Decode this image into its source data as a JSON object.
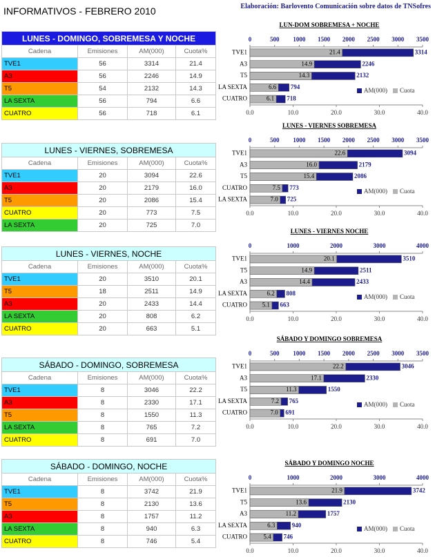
{
  "header": {
    "title": "INFORMATIVOS - FEBRERO 2010",
    "credit": "Elaboración: Barlovento Comunicación sobre datos de TNSofres"
  },
  "tables": [
    {
      "title": "LUNES - DOMINGO, SOBREMESA Y NOCHE",
      "title_background": "#1a1ae0",
      "title_color": "#ffffff",
      "columns": [
        "Cadena",
        "Emisiones",
        "AM(000)",
        "Cuota%"
      ],
      "rows": [
        [
          "TVE1",
          "56",
          "3314",
          "21.4"
        ],
        [
          "A3",
          "56",
          "2246",
          "14.9"
        ],
        [
          "T5",
          "54",
          "2132",
          "14.3"
        ],
        [
          "LA SEXTA",
          "56",
          "794",
          "6.6"
        ],
        [
          "CUATRO",
          "56",
          "718",
          "6.1"
        ]
      ],
      "row_colors": [
        "#33ccff",
        "#ff0000",
        "#ff9900",
        "#33cc33",
        "#ffff00"
      ]
    },
    {
      "title": "LUNES - VIERNES, SOBREMESA",
      "title_background": "#ccffff",
      "title_color": "#000000",
      "columns": [
        "Cadena",
        "Emisiones",
        "AM(000)",
        "Cuota%"
      ],
      "rows": [
        [
          "TVE1",
          "20",
          "3094",
          "22.6"
        ],
        [
          "A3",
          "20",
          "2179",
          "16.0"
        ],
        [
          "T5",
          "20",
          "2086",
          "15.4"
        ],
        [
          "CUATRO",
          "20",
          "773",
          "7.5"
        ],
        [
          "LA SEXTA",
          "20",
          "725",
          "7.0"
        ]
      ],
      "row_colors": [
        "#33ccff",
        "#ff0000",
        "#ff9900",
        "#ffff00",
        "#33cc33"
      ]
    },
    {
      "title": "LUNES - VIERNES, NOCHE",
      "title_background": "#ccffff",
      "title_color": "#000000",
      "columns": [
        "Cadena",
        "Emisiones",
        "AM(000)",
        "Cuota%"
      ],
      "rows": [
        [
          "TVE1",
          "20",
          "3510",
          "20.1"
        ],
        [
          "T5",
          "18",
          "2511",
          "14.9"
        ],
        [
          "A3",
          "20",
          "2433",
          "14.4"
        ],
        [
          "LA SEXTA",
          "20",
          "808",
          "6.2"
        ],
        [
          "CUATRO",
          "20",
          "663",
          "5.1"
        ]
      ],
      "row_colors": [
        "#33ccff",
        "#ff9900",
        "#ff0000",
        "#33cc33",
        "#ffff00"
      ]
    },
    {
      "title": "SÁBADO - DOMINGO, SOBREMESA",
      "title_background": "#ccffff",
      "title_color": "#000000",
      "columns": [
        "Cadena",
        "Emisiones",
        "AM(000)",
        "Cuota%"
      ],
      "rows": [
        [
          "TVE1",
          "8",
          "3046",
          "22.2"
        ],
        [
          "A3",
          "8",
          "2330",
          "17.1"
        ],
        [
          "T5",
          "8",
          "1550",
          "11.3"
        ],
        [
          "LA SEXTA",
          "8",
          "765",
          "7.2"
        ],
        [
          "CUATRO",
          "8",
          "691",
          "7.0"
        ]
      ],
      "row_colors": [
        "#33ccff",
        "#ff0000",
        "#ff9900",
        "#33cc33",
        "#ffff00"
      ]
    },
    {
      "title": "SÁBADO - DOMINGO, NOCHE",
      "title_background": "#ccffff",
      "title_color": "#000000",
      "columns": [
        "Cadena",
        "Emisiones",
        "AM(000)",
        "Cuota%"
      ],
      "rows": [
        [
          "TVE1",
          "8",
          "3742",
          "21.9"
        ],
        [
          "T5",
          "8",
          "2130",
          "13.6"
        ],
        [
          "A3",
          "8",
          "1757",
          "11.2"
        ],
        [
          "LA SEXTA",
          "8",
          "940",
          "6.3"
        ],
        [
          "CUATRO",
          "8",
          "746",
          "5.4"
        ]
      ],
      "row_colors": [
        "#33ccff",
        "#ff9900",
        "#ff0000",
        "#33cc33",
        "#ffff00"
      ]
    }
  ],
  "chart_data": [
    {
      "type": "bar",
      "orientation": "horizontal",
      "title": "LUN-DOM SOBREMESA + NOCHE",
      "legend": "lower right",
      "categories": [
        "TVE1",
        "A3",
        "T5",
        "LA SEXTA",
        "CUATRO"
      ],
      "xlim": [
        0,
        3500
      ],
      "xticks": [
        0,
        500,
        1000,
        1500,
        2000,
        2500,
        3000,
        3500
      ],
      "x2lim": [
        0,
        40
      ],
      "x2ticks": [
        {
          "value": 0,
          "label": "0.0"
        },
        {
          "value": 10,
          "label": "10.0"
        },
        {
          "value": 20,
          "label": "20.0"
        },
        {
          "value": 30,
          "label": "30.0"
        },
        {
          "value": 40,
          "label": "40.0"
        }
      ],
      "series": [
        {
          "name": "AM(000)",
          "color": "#1c1c8c",
          "values": [
            3314,
            2246,
            2132,
            794,
            718
          ]
        },
        {
          "name": "Cuota",
          "color": "#b4b4b4",
          "axis": "x2",
          "values": [
            21.4,
            14.9,
            14.3,
            6.6,
            6.1
          ],
          "value_labels": [
            "21.4",
            "14.9",
            "14.3",
            "6.6",
            "6.1"
          ]
        }
      ]
    },
    {
      "type": "bar",
      "orientation": "horizontal",
      "title": "LUNES - VIERNES SOBREMESA",
      "legend": "lower right",
      "categories": [
        "TVE1",
        "A3",
        "T5",
        "CUATRO",
        "LA SEXTA"
      ],
      "xlim": [
        0,
        3500
      ],
      "xticks": [
        0,
        500,
        1000,
        1500,
        2000,
        2500,
        3000,
        3500
      ],
      "x2lim": [
        0,
        40
      ],
      "x2ticks": [
        {
          "value": 0,
          "label": "0.0"
        },
        {
          "value": 10,
          "label": "10.0"
        },
        {
          "value": 20,
          "label": "20.0"
        },
        {
          "value": 30,
          "label": "30.0"
        },
        {
          "value": 40,
          "label": "40.0"
        }
      ],
      "series": [
        {
          "name": "AM(000)",
          "color": "#1c1c8c",
          "values": [
            3094,
            2179,
            2086,
            773,
            725
          ]
        },
        {
          "name": "Cuota",
          "color": "#b4b4b4",
          "axis": "x2",
          "values": [
            22.6,
            16.0,
            15.4,
            7.5,
            7.0
          ],
          "value_labels": [
            "22.6",
            "16.0",
            "15.4",
            "7.5",
            "7.0"
          ]
        }
      ]
    },
    {
      "type": "bar",
      "orientation": "horizontal",
      "title": "LUNES - VIERNES  NOCHE",
      "legend": "lower right",
      "categories": [
        "TVE1",
        "T5",
        "A3",
        "LA SEXTA",
        "CUATRO"
      ],
      "xlim": [
        0,
        4000
      ],
      "xticks": [
        0,
        1000,
        2000,
        3000,
        4000
      ],
      "x2lim": [
        0,
        40
      ],
      "x2ticks": [
        {
          "value": 0,
          "label": "0.0"
        },
        {
          "value": 10,
          "label": "10.0"
        },
        {
          "value": 20,
          "label": "20.0"
        },
        {
          "value": 30,
          "label": "30.0"
        },
        {
          "value": 40,
          "label": "40.0"
        }
      ],
      "series": [
        {
          "name": "AM(000)",
          "color": "#1c1c8c",
          "values": [
            3510,
            2511,
            2433,
            808,
            663
          ]
        },
        {
          "name": "Cuota",
          "color": "#b4b4b4",
          "axis": "x2",
          "values": [
            20.1,
            14.9,
            14.4,
            6.2,
            5.1
          ],
          "value_labels": [
            "20.1",
            "14.9",
            "14.4",
            "6.2",
            "5.1"
          ]
        }
      ]
    },
    {
      "type": "bar",
      "orientation": "horizontal",
      "title": "SÁBADO Y DOMINGO SOBREMESA",
      "legend": "lower right",
      "categories": [
        "TVE1",
        "A3",
        "T5",
        "LA SEXTA",
        "CUATRO"
      ],
      "xlim": [
        0,
        3500
      ],
      "xticks": [
        0,
        500,
        1000,
        1500,
        2000,
        2500,
        3000,
        3500
      ],
      "x2lim": [
        0,
        40
      ],
      "x2ticks": [
        {
          "value": 0,
          "label": "0.0"
        },
        {
          "value": 10,
          "label": "10.0"
        },
        {
          "value": 20,
          "label": "20.0"
        },
        {
          "value": 30,
          "label": "30.0"
        },
        {
          "value": 40,
          "label": "40.0"
        }
      ],
      "series": [
        {
          "name": "AM(000)",
          "color": "#1c1c8c",
          "values": [
            3046,
            2330,
            1550,
            765,
            691
          ]
        },
        {
          "name": "Cuota",
          "color": "#b4b4b4",
          "axis": "x2",
          "values": [
            22.2,
            17.1,
            11.3,
            7.2,
            7.0
          ],
          "value_labels": [
            "22.2",
            "17.1",
            "11.3",
            "7.2",
            "7.0"
          ]
        }
      ]
    },
    {
      "type": "bar",
      "orientation": "horizontal",
      "title": "SÁBADO Y DOMINGO  NOCHE",
      "legend": "lower right",
      "categories": [
        "TVE1",
        "T5",
        "A3",
        "LA SEXTA",
        "CUATRO"
      ],
      "xlim": [
        0,
        4000
      ],
      "xticks": [
        0,
        1000,
        2000,
        3000,
        4000
      ],
      "x2lim": [
        0,
        40
      ],
      "x2ticks": [
        {
          "value": 0,
          "label": "0.0"
        },
        {
          "value": 10,
          "label": "10.0"
        },
        {
          "value": 20,
          "label": "20.0"
        },
        {
          "value": 30,
          "label": "30.0"
        },
        {
          "value": 40,
          "label": "40.0"
        }
      ],
      "series": [
        {
          "name": "AM(000)",
          "color": "#1c1c8c",
          "values": [
            3742,
            2130,
            1757,
            940,
            746
          ]
        },
        {
          "name": "Cuota",
          "color": "#b4b4b4",
          "axis": "x2",
          "values": [
            21.9,
            13.6,
            11.2,
            6.3,
            5.4
          ],
          "value_labels": [
            "21.9",
            "13.6",
            "11.2",
            "6.3",
            "5.4"
          ]
        }
      ]
    }
  ]
}
